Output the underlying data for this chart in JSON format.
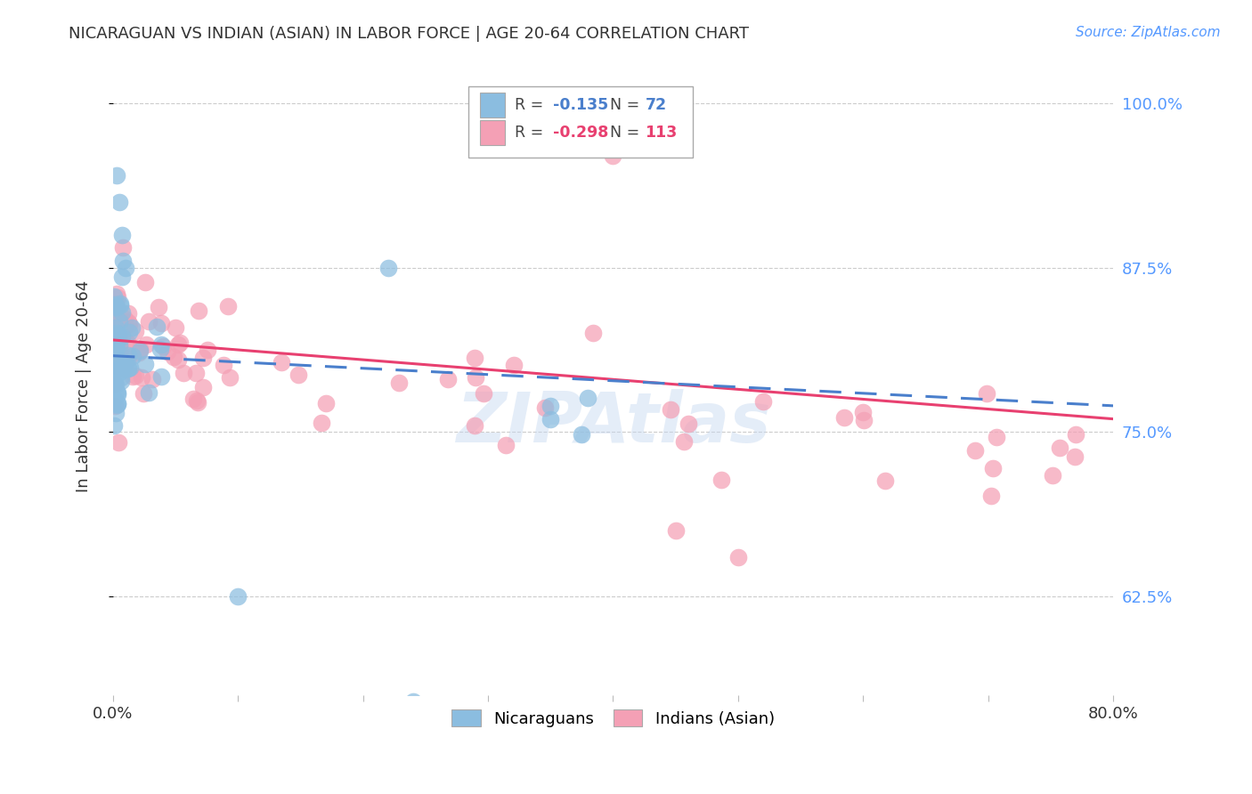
{
  "title": "NICARAGUAN VS INDIAN (ASIAN) IN LABOR FORCE | AGE 20-64 CORRELATION CHART",
  "source": "Source: ZipAtlas.com",
  "ylabel": "In Labor Force | Age 20-64",
  "xlim": [
    0.0,
    0.8
  ],
  "ylim": [
    0.55,
    1.02
  ],
  "yticks": [
    0.625,
    0.75,
    0.875,
    1.0
  ],
  "ytick_labels": [
    "62.5%",
    "75.0%",
    "87.5%",
    "100.0%"
  ],
  "xticks": [
    0.0,
    0.1,
    0.2,
    0.3,
    0.4,
    0.5,
    0.6,
    0.7,
    0.8
  ],
  "nicaraguan_color": "#8bbde0",
  "indian_color": "#f4a0b5",
  "trendline_nicaraguan_color": "#4a7fcc",
  "trendline_indian_color": "#e84070",
  "r_nicaraguan": -0.135,
  "n_nicaraguan": 72,
  "r_indian": -0.298,
  "n_indian": 113,
  "background_color": "#ffffff",
  "grid_color": "#cccccc",
  "axis_label_color": "#5599ff",
  "title_color": "#333333",
  "watermark_color": "#c5d8f0",
  "watermark_alpha": 0.45
}
